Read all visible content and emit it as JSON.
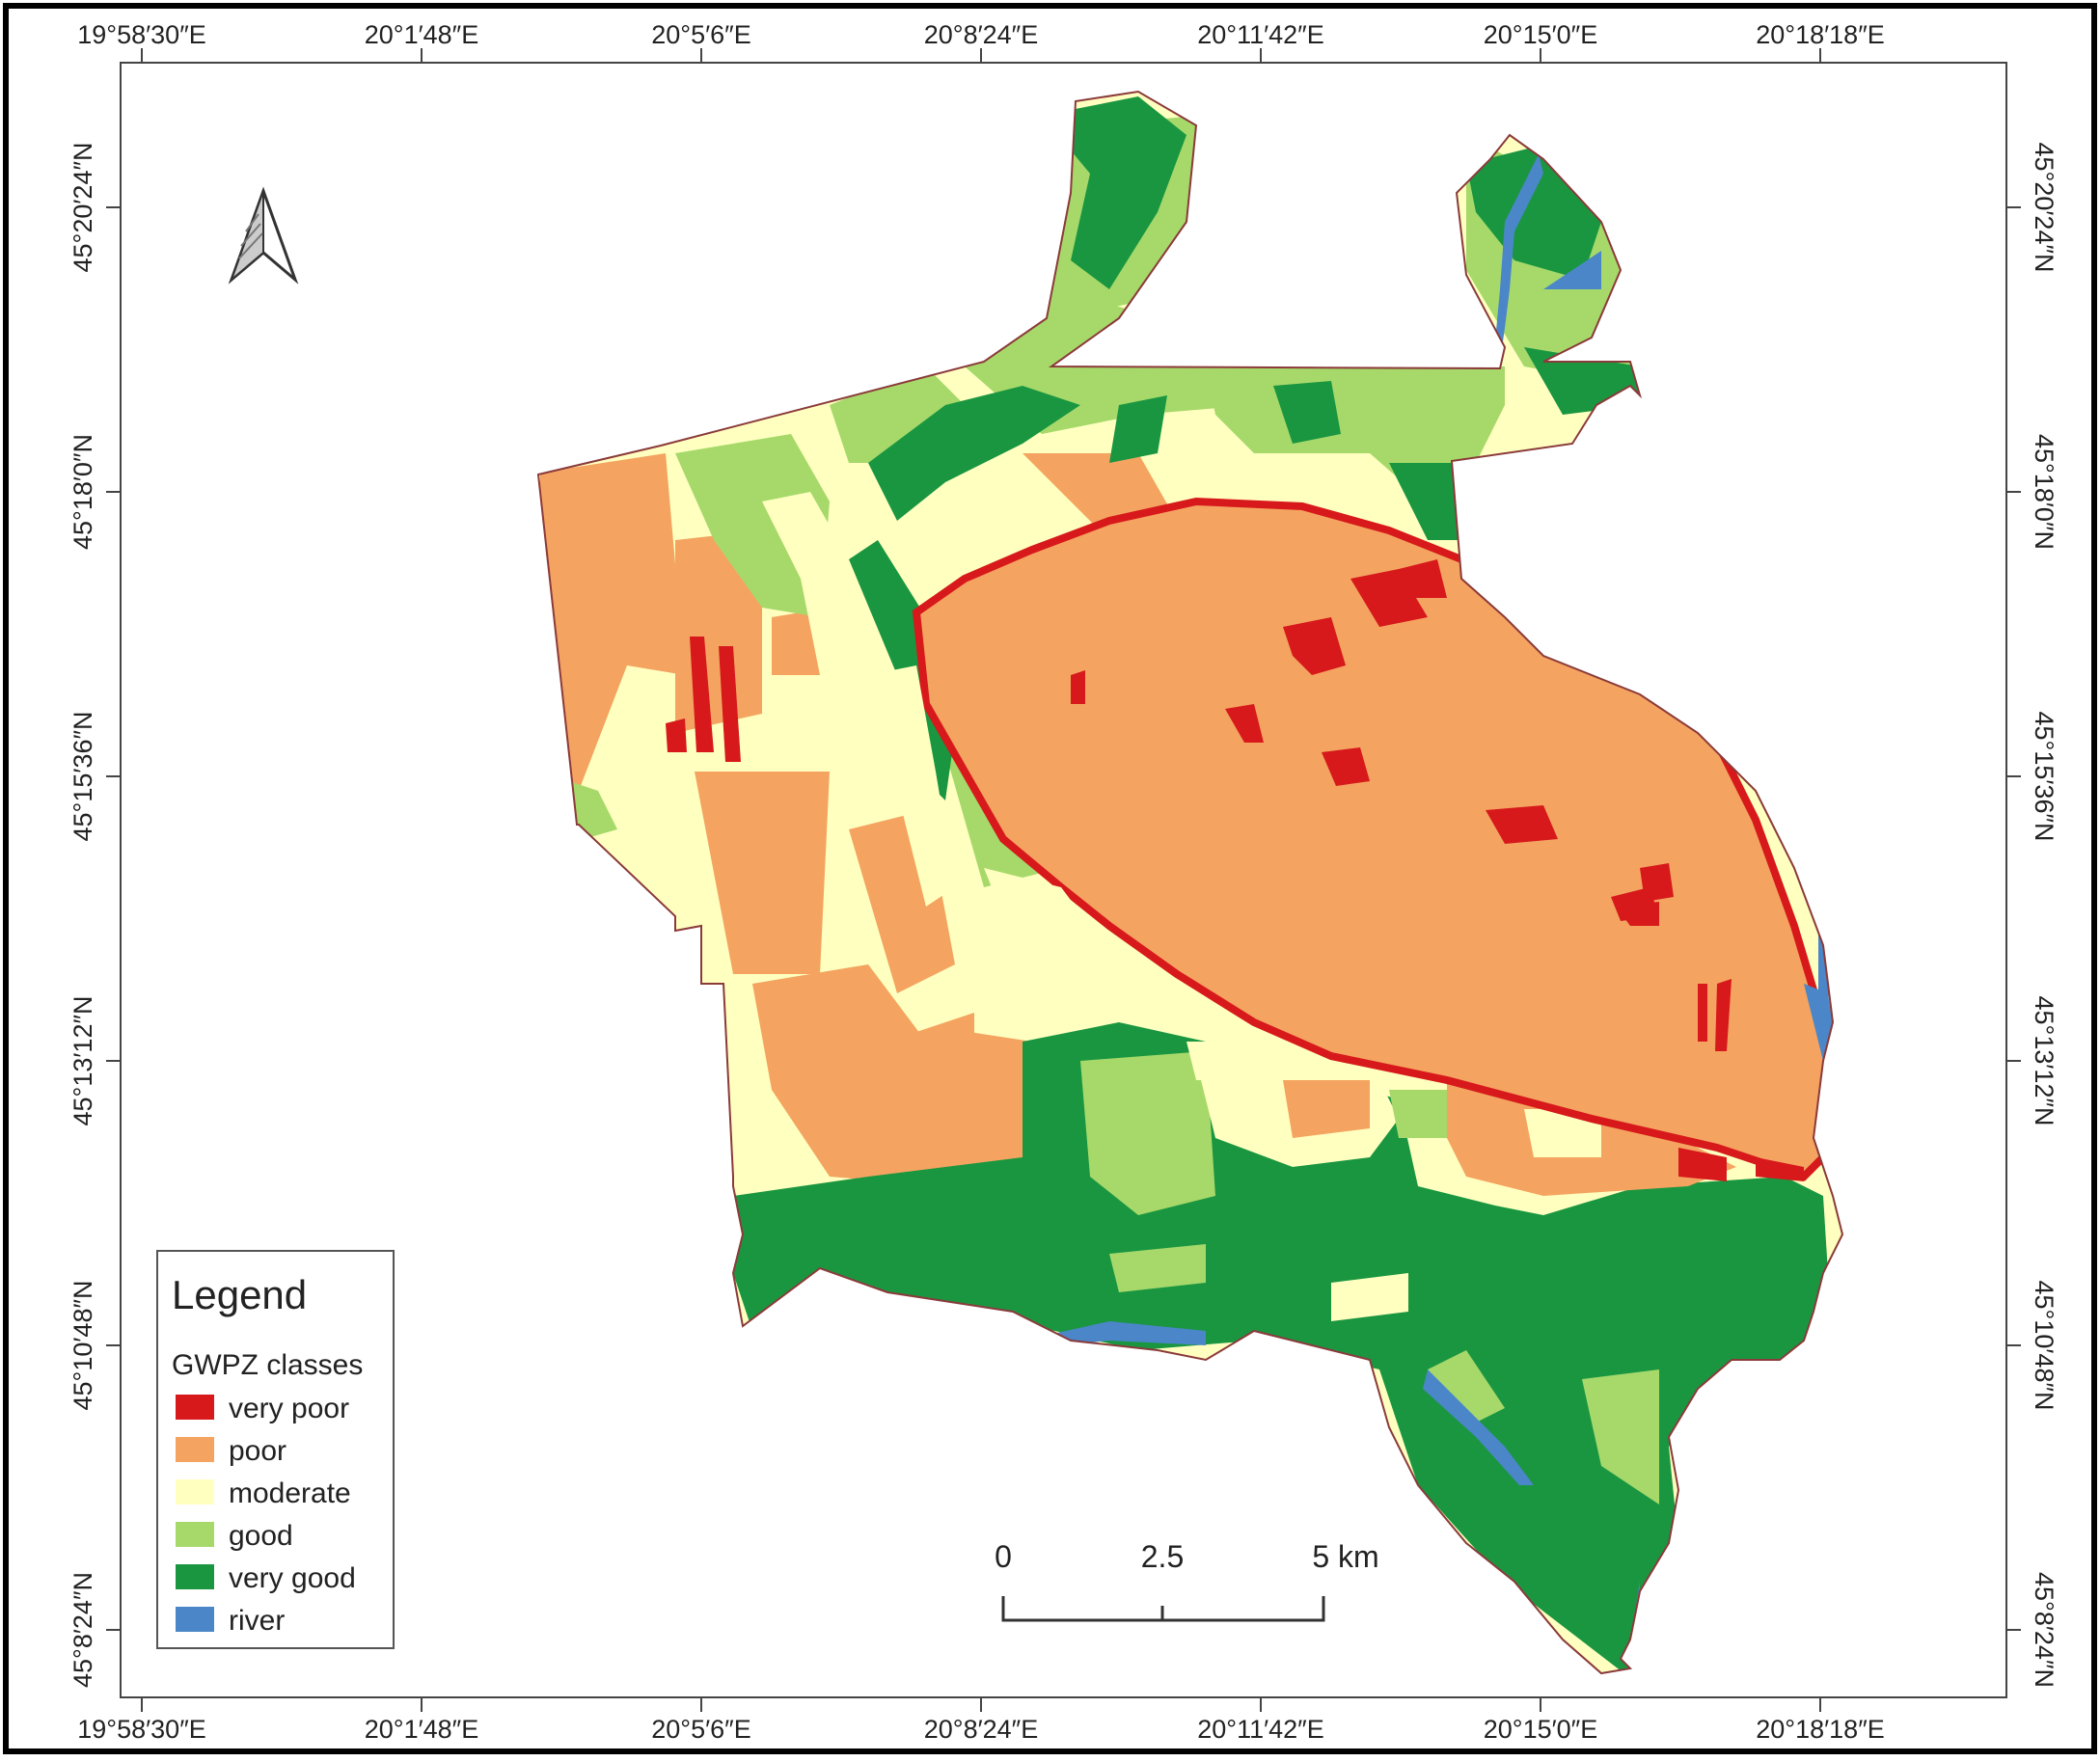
{
  "map": {
    "lon_ticks": [
      "19°58′30″E",
      "20°1′48″E",
      "20°5′6″E",
      "20°8′24″E",
      "20°11′42″E",
      "20°15′0″E",
      "20°18′18″E"
    ],
    "lat_ticks": [
      "45°20′24″N",
      "45°18′0″N",
      "45°15′36″N",
      "45°13′12″N",
      "45°10′48″N",
      "45°8′24″N"
    ],
    "north_arrow_icon": "north-arrow-icon"
  },
  "legend": {
    "title": "Legend",
    "subtitle": "GWPZ classes",
    "items": [
      {
        "label": "very poor",
        "color": "#d7191c"
      },
      {
        "label": "poor",
        "color": "#f4a460"
      },
      {
        "label": "moderate",
        "color": "#ffffc0"
      },
      {
        "label": "good",
        "color": "#a6d96a"
      },
      {
        "label": "very good",
        "color": "#1a9641"
      },
      {
        "label": "river",
        "color": "#4a86c8"
      }
    ]
  },
  "scale_bar": {
    "labels": [
      "0",
      "2.5",
      "5 km"
    ]
  }
}
